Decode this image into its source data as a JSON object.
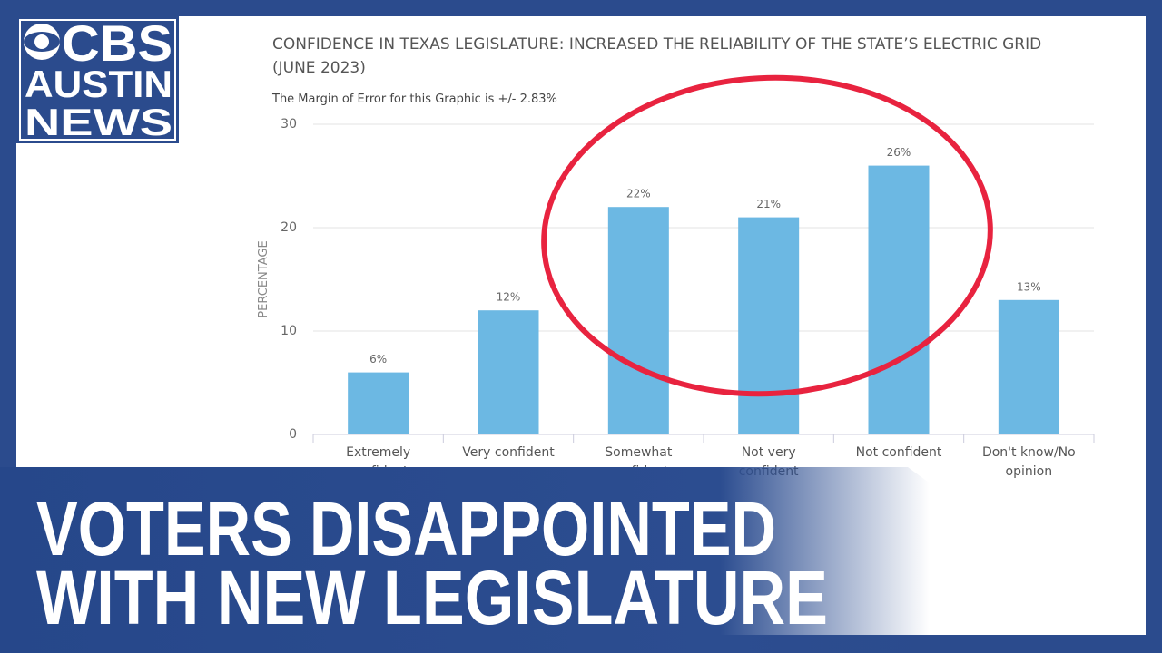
{
  "logo": {
    "line1": "CBS",
    "line2": "AUSTIN",
    "line3": "NEWS"
  },
  "headline": {
    "line1": "VOTERS DISAPPOINTED",
    "line2": "WITH NEW LEGISLATURE"
  },
  "chart_data": {
    "type": "bar",
    "title": "CONFIDENCE IN TEXAS LEGISLATURE: INCREASED THE RELIABILITY OF THE STATE’S ELECTRIC GRID (JUNE 2023)",
    "subtitle": "The Margin of Error for this Graphic is +/- 2.83%",
    "y_label": "PERCENTAGE",
    "categories": [
      "Extremely confident",
      "Very confident",
      "Somewhat confident",
      "Not very confident",
      "Not confident",
      "Don't know/No opinion"
    ],
    "values": [
      6,
      12,
      22,
      21,
      26,
      13
    ],
    "value_labels": [
      "6%",
      "12%",
      "22%",
      "21%",
      "26%",
      "13%"
    ],
    "color": "#6cb8e3",
    "ylim": [
      0,
      30
    ],
    "yticks": [
      0,
      10,
      20,
      30
    ],
    "grid": true
  }
}
